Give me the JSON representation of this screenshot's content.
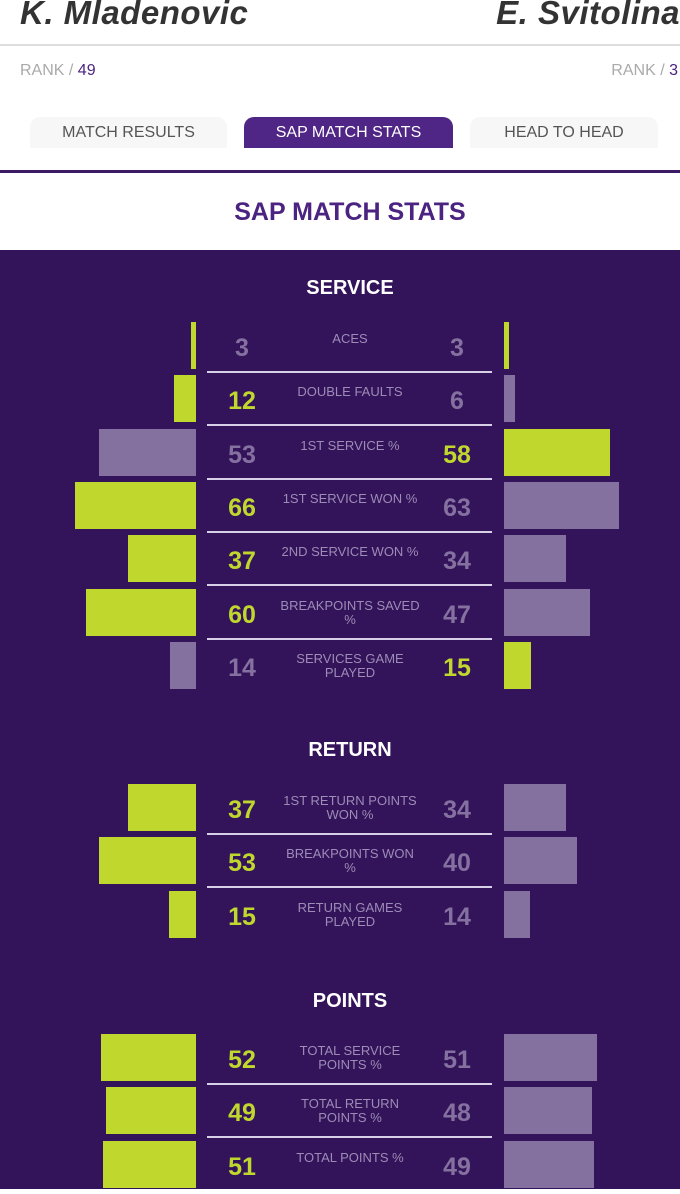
{
  "players": {
    "left": {
      "name": "K. Mladenovic",
      "rank_label": "RANK / ",
      "rank": "49"
    },
    "right": {
      "name": "E. Svitolina",
      "rank_label": "RANK / ",
      "rank": "3"
    }
  },
  "tabs": [
    {
      "label": "MATCH RESULTS"
    },
    {
      "label": "SAP MATCH STATS",
      "active": true
    },
    {
      "label": "HEAD TO HEAD"
    }
  ],
  "title": "SAP MATCH STATS",
  "colors": {
    "highlight": "#c0d72e",
    "muted": "#8571a0",
    "panel": "#33135a"
  },
  "sections": [
    {
      "title": "SERVICE",
      "stats": [
        {
          "label": "ACES",
          "left": 3,
          "right": 3
        },
        {
          "label": "DOUBLE FAULTS",
          "left": 12,
          "right": 6
        },
        {
          "label": "1ST SERVICE %",
          "left": 53,
          "right": 58
        },
        {
          "label": "1ST SERVICE WON %",
          "left": 66,
          "right": 63
        },
        {
          "label": "2ND SERVICE WON %",
          "left": 37,
          "right": 34
        },
        {
          "label": "BREAKPOINTS SAVED %",
          "left": 60,
          "right": 47
        },
        {
          "label": "SERVICES GAME PLAYED",
          "left": 14,
          "right": 15
        }
      ]
    },
    {
      "title": "RETURN",
      "stats": [
        {
          "label": "1ST RETURN POINTS WON %",
          "left": 37,
          "right": 34
        },
        {
          "label": "BREAKPOINTS WON %",
          "left": 53,
          "right": 40
        },
        {
          "label": "RETURN GAMES PLAYED",
          "left": 15,
          "right": 14
        }
      ]
    },
    {
      "title": "POINTS",
      "stats": [
        {
          "label": "TOTAL SERVICE POINTS %",
          "left": 52,
          "right": 51
        },
        {
          "label": "TOTAL RETURN POINTS %",
          "left": 49,
          "right": 48
        },
        {
          "label": "TOTAL POINTS %",
          "left": 51,
          "right": 49
        }
      ]
    }
  ]
}
